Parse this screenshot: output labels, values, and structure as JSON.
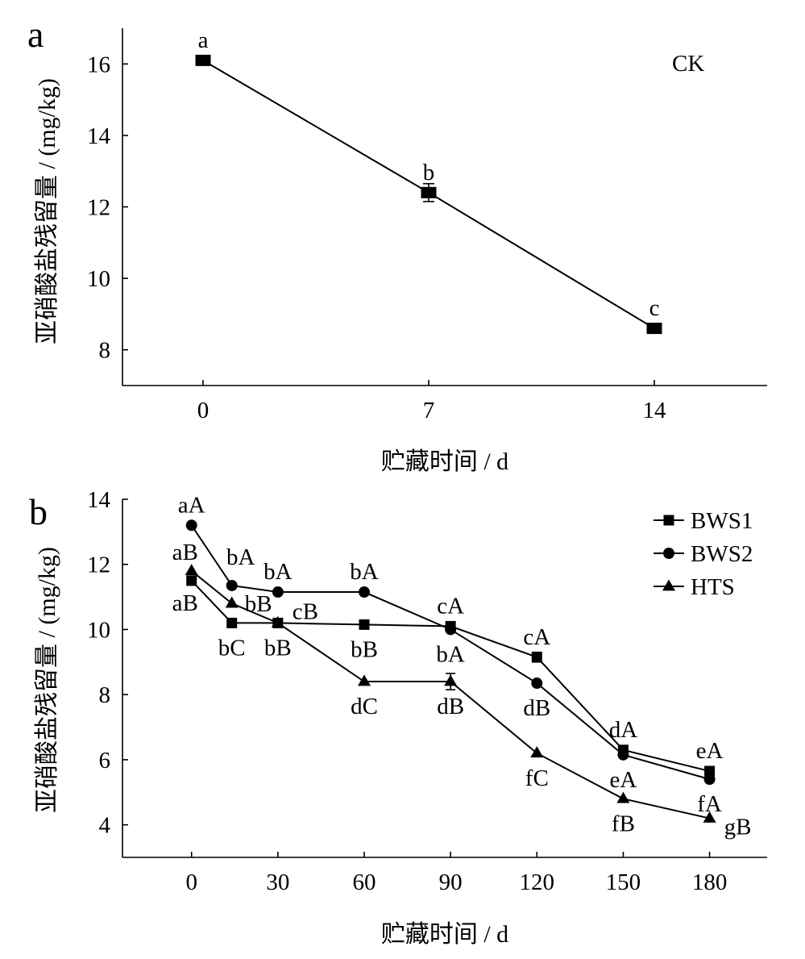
{
  "chart_data": [
    {
      "panel": "a",
      "type": "line",
      "title": "",
      "xlabel": "贮藏时间 / d",
      "ylabel": "亚硝酸盐残留量 / (mg/kg)",
      "x": [
        0,
        7,
        14
      ],
      "xticks": [
        0,
        7,
        14
      ],
      "yticks": [
        8,
        10,
        12,
        14,
        16
      ],
      "xlim": [
        -2.5,
        17.5
      ],
      "ylim": [
        7,
        17
      ],
      "grid": false,
      "legend": "top-right",
      "series": [
        {
          "name": "CK",
          "marker": "square",
          "color": "#000000",
          "values": [
            16.1,
            12.4,
            8.6
          ],
          "errors": [
            0,
            0.25,
            0
          ],
          "labels": [
            "a",
            "b",
            "c"
          ]
        }
      ]
    },
    {
      "panel": "b",
      "type": "line",
      "title": "",
      "xlabel": "贮藏时间 / d",
      "ylabel": "亚硝酸盐残留量 / (mg/kg)",
      "x": [
        0,
        14,
        30,
        60,
        90,
        120,
        150,
        180
      ],
      "xticks": [
        0,
        30,
        60,
        90,
        120,
        150,
        180
      ],
      "yticks": [
        4,
        6,
        8,
        10,
        12,
        14
      ],
      "xlim": [
        -24,
        200
      ],
      "ylim": [
        3,
        14
      ],
      "grid": false,
      "legend": "top-right",
      "series": [
        {
          "name": "BWS1",
          "marker": "square",
          "color": "#000000",
          "values": [
            11.5,
            10.2,
            10.2,
            10.15,
            10.1,
            9.15,
            6.3,
            5.65
          ],
          "errors": [
            0,
            0,
            0,
            0,
            0,
            0.15,
            0,
            0
          ],
          "labels": [
            "aB",
            "bC",
            "bB",
            "bB",
            "cA",
            "cA",
            "dA",
            "eA"
          ]
        },
        {
          "name": "BWS2",
          "marker": "circle",
          "color": "#000000",
          "values": [
            13.2,
            11.35,
            11.15,
            11.15,
            10.0,
            8.35,
            6.15,
            5.4
          ],
          "errors": [
            0,
            0,
            0,
            0,
            0,
            0,
            0,
            0
          ],
          "labels": [
            "aA",
            "bA",
            "bA",
            "bA",
            "bA",
            "dB",
            "eA",
            "fA"
          ]
        },
        {
          "name": "HTS",
          "marker": "triangle",
          "color": "#000000",
          "values": [
            11.8,
            10.8,
            10.2,
            8.4,
            8.4,
            6.2,
            4.8,
            4.2
          ],
          "errors": [
            0,
            0,
            0,
            0,
            0.25,
            0,
            0,
            0
          ],
          "labels": [
            "aB",
            "bB",
            "cB",
            "dC",
            "dB",
            "fC",
            "fB",
            "gB"
          ]
        }
      ]
    }
  ]
}
